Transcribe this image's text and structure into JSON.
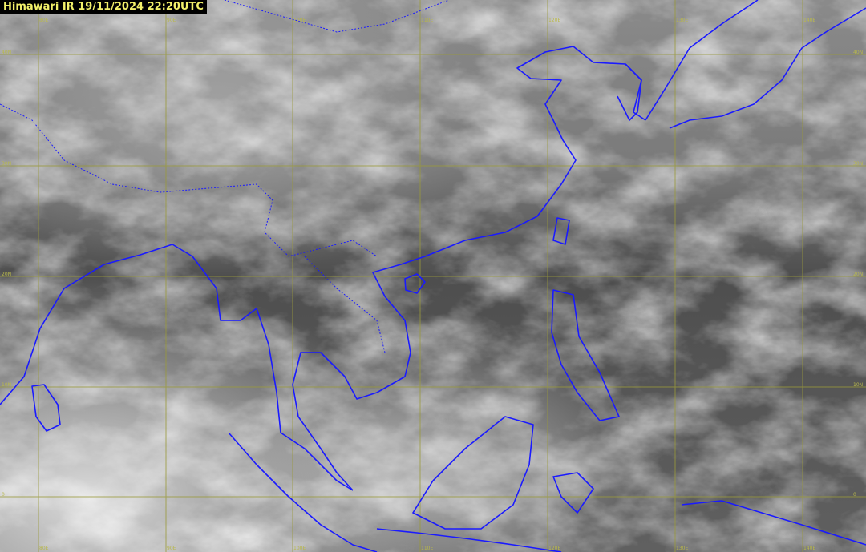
{
  "title": "Himawari IR 19/11/2024 22:20UTC",
  "colors": {
    "coastline": "#1a1aff",
    "grid": "#9a9a3a",
    "title_text": "#f2f06a",
    "title_bg": "#000000"
  },
  "grid": {
    "longitudes": [
      "80E",
      "90E",
      "100E",
      "110E",
      "120E",
      "130E",
      "140E"
    ],
    "latitudes": [
      "40N",
      "30N",
      "20N",
      "10N",
      "0"
    ]
  }
}
